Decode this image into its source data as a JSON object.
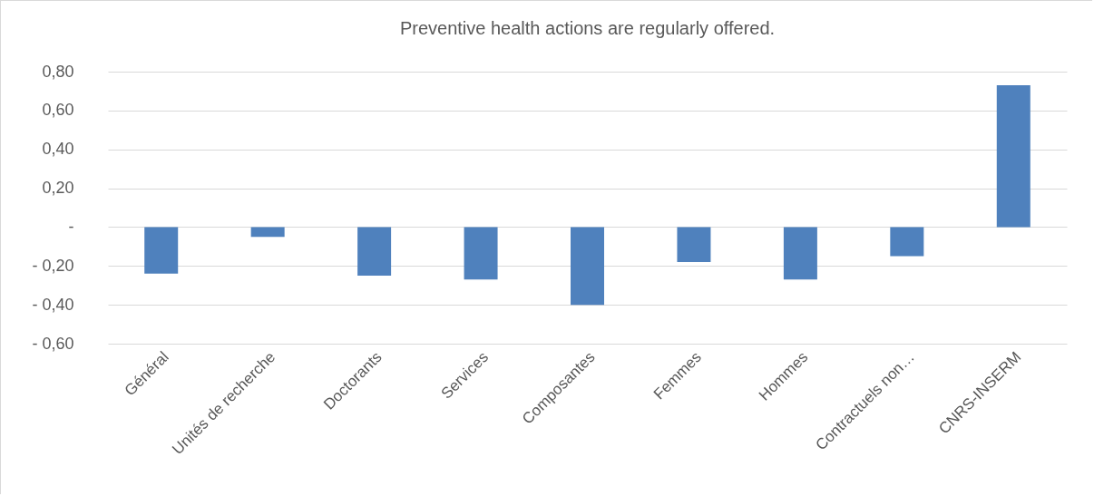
{
  "chart_data": {
    "type": "bar",
    "title": "Preventive health actions are regularly offered.",
    "categories": [
      "Général",
      "Unités de recherche",
      "Doctorants",
      "Services",
      "Composantes",
      "Femmes",
      "Hommes",
      "Contractuels non…",
      "CNRS-INSERM"
    ],
    "values": [
      -0.24,
      -0.05,
      -0.25,
      -0.27,
      -0.4,
      -0.18,
      -0.27,
      -0.15,
      0.73
    ],
    "color": "#4f81bd",
    "ylim": [
      -0.6,
      0.8
    ],
    "yticks": [
      {
        "value": -0.6,
        "label": "- 0,60"
      },
      {
        "value": -0.4,
        "label": "- 0,40"
      },
      {
        "value": -0.2,
        "label": "- 0,20"
      },
      {
        "value": 0,
        "label": "-"
      },
      {
        "value": 0.2,
        "label": "0,20"
      },
      {
        "value": 0.4,
        "label": "0,40"
      },
      {
        "value": 0.6,
        "label": "0,60"
      },
      {
        "value": 0.8,
        "label": "0,80"
      }
    ],
    "grid": "y"
  }
}
